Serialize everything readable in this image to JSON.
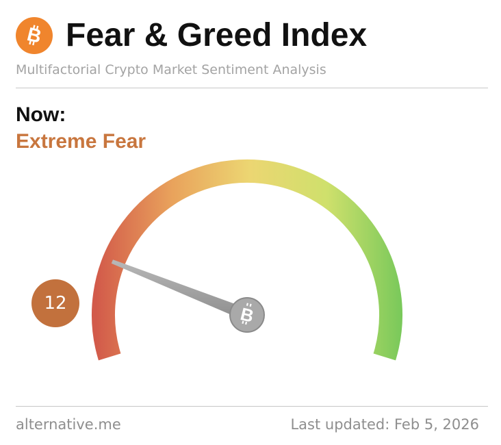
{
  "header": {
    "title": "Fear & Greed Index",
    "subtitle": "Multifactorial Crypto Market Sentiment Analysis",
    "logo_icon": "bitcoin-icon",
    "logo_color": "#f0852d"
  },
  "status": {
    "now_label": "Now:",
    "classification": "Extreme Fear",
    "classification_color": "#c8763e"
  },
  "gauge": {
    "value": "12",
    "min": 0,
    "max": 100,
    "badge_color": "#c2713d",
    "colors": [
      "#d25a4a",
      "#e9a35c",
      "#ecd672",
      "#cfe06c",
      "#77c85a"
    ],
    "hub_icon": "bitcoin-icon"
  },
  "footer": {
    "source": "alternative.me",
    "last_updated": "Last updated: Feb 5, 2026"
  }
}
